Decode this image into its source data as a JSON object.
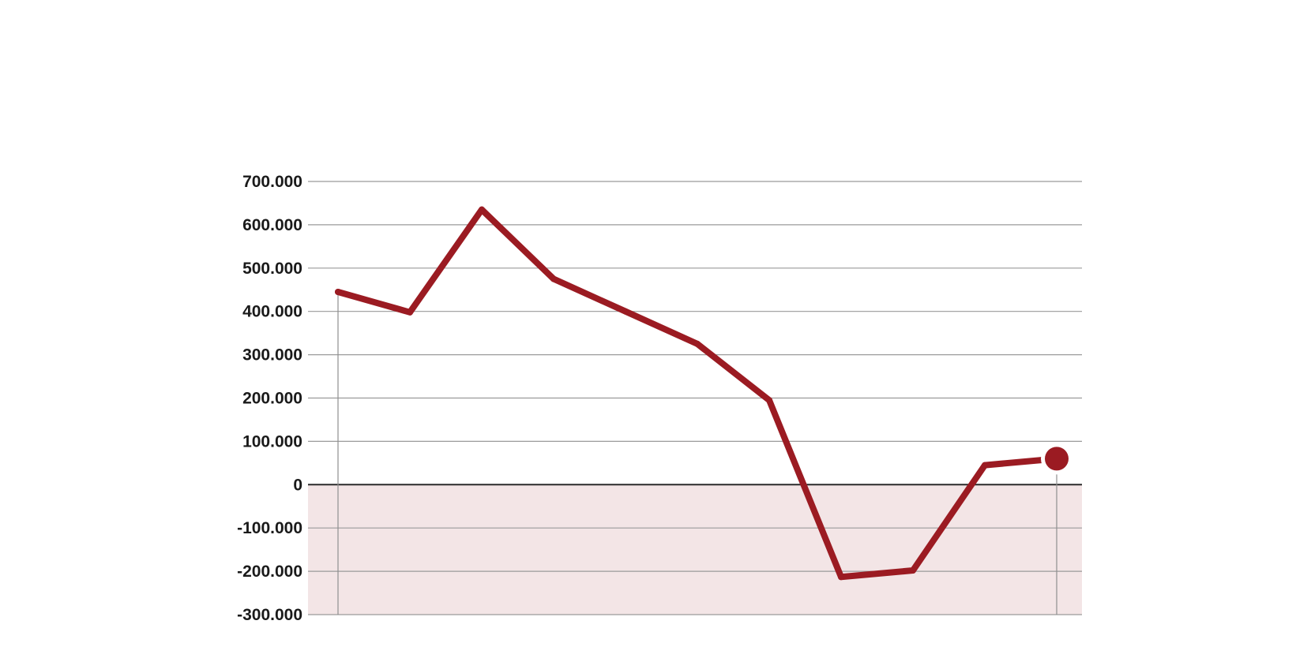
{
  "chart_data": {
    "type": "line",
    "title": "",
    "xlabel": "",
    "ylabel": "",
    "ylim": [
      -300000,
      700000
    ],
    "y_ticks": [
      700000,
      600000,
      500000,
      400000,
      300000,
      200000,
      100000,
      0,
      -100000,
      -200000,
      -300000
    ],
    "y_tick_labels": [
      "700.000",
      "600.000",
      "500.000",
      "400.000",
      "300.000",
      "200.000",
      "100.000",
      "0",
      "-100.000",
      "-200.000",
      "-300.000"
    ],
    "x_count": 11,
    "values": [
      445000,
      398000,
      635000,
      475000,
      400000,
      325000,
      195000,
      -213000,
      -198000,
      45000,
      60000
    ],
    "grid": true,
    "negative_region_shaded": true,
    "last_point_marker": true,
    "colors": {
      "line": "#9b1b22",
      "grid": "#9a9a9a",
      "zero_line": "#2a2a2a",
      "negative_fill": "#f3e5e6",
      "marker_guide": "#8f8f8f"
    }
  }
}
